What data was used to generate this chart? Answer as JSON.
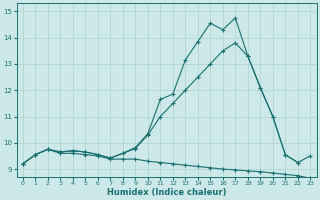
{
  "xlabel": "Humidex (Indice chaleur)",
  "xlim": [
    -0.5,
    23.5
  ],
  "ylim": [
    8.7,
    15.3
  ],
  "xticks": [
    0,
    1,
    2,
    3,
    4,
    5,
    6,
    7,
    8,
    9,
    10,
    11,
    12,
    13,
    14,
    15,
    16,
    17,
    18,
    19,
    20,
    21,
    22,
    23
  ],
  "yticks": [
    9,
    10,
    11,
    12,
    13,
    14,
    15
  ],
  "bg_color": "#cce8e8",
  "grid_color": "#b0d0d0",
  "line_color": "#1a7070",
  "line1_x": [
    0,
    1,
    2,
    3,
    4,
    5,
    6,
    7,
    8,
    9,
    10,
    11,
    12,
    13,
    14,
    15,
    16,
    17,
    18,
    19,
    20,
    21,
    22,
    23
  ],
  "line1_y": [
    9.2,
    9.55,
    9.75,
    9.6,
    9.6,
    9.55,
    9.5,
    9.38,
    9.38,
    9.38,
    9.3,
    9.25,
    9.2,
    9.15,
    9.1,
    9.05,
    9.0,
    8.97,
    8.93,
    8.9,
    8.85,
    8.8,
    8.75,
    8.65
  ],
  "line2_x": [
    0,
    1,
    2,
    3,
    4,
    5,
    6,
    7,
    8,
    9,
    10,
    11,
    12,
    13,
    14,
    15,
    16,
    17,
    18,
    19,
    20,
    21,
    22
  ],
  "line2_y": [
    9.2,
    9.55,
    9.75,
    9.65,
    9.7,
    9.65,
    9.55,
    9.42,
    9.6,
    9.78,
    10.3,
    11.0,
    11.5,
    12.0,
    12.5,
    13.0,
    13.5,
    13.8,
    13.3,
    12.1,
    11.0,
    9.55,
    9.25
  ],
  "line3_x": [
    0,
    1,
    2,
    3,
    4,
    5,
    6,
    7,
    8,
    9,
    10,
    11,
    12,
    13,
    14,
    15,
    16,
    17,
    18,
    19,
    20,
    21,
    22,
    23
  ],
  "line3_y": [
    9.2,
    9.55,
    9.75,
    9.65,
    9.7,
    9.65,
    9.55,
    9.42,
    9.6,
    9.82,
    10.35,
    11.65,
    11.85,
    13.15,
    13.85,
    14.55,
    14.3,
    14.75,
    13.3,
    12.1,
    11.0,
    9.55,
    9.25,
    9.5
  ]
}
